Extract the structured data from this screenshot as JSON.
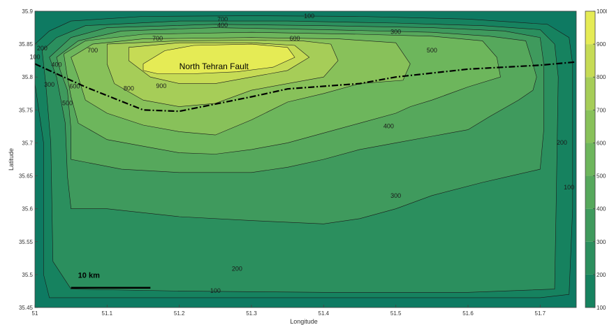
{
  "chart_data": {
    "type": "contour",
    "title": "",
    "xlabel": "Longitude",
    "ylabel": "Latitude",
    "xlim": [
      51.0,
      51.75
    ],
    "ylim": [
      35.45,
      35.9
    ],
    "xticks": [
      51,
      51.1,
      51.2,
      51.3,
      51.4,
      51.5,
      51.6,
      51.7
    ],
    "yticks": [
      35.45,
      35.5,
      35.55,
      35.6,
      35.65,
      35.7,
      35.75,
      35.8,
      35.85,
      35.9
    ],
    "xtick_labels": [
      "51",
      "51.1",
      "51.2",
      "51.3",
      "51.4",
      "51.5",
      "51.6",
      "51.7"
    ],
    "ytick_labels": [
      "35.45",
      "35.5",
      "35.55",
      "35.6",
      "35.65",
      "35.7",
      "35.75",
      "35.8",
      "35.85",
      "35.9"
    ],
    "contour_levels": [
      100,
      200,
      300,
      400,
      500,
      600,
      700,
      800,
      900,
      1000
    ],
    "colorbar_tick_labels": [
      "100",
      "200",
      "300",
      "400",
      "500",
      "600",
      "700",
      "800",
      "900",
      "1000"
    ],
    "colors": {
      "level_0": "#0e7a62",
      "level_100": "#16825f",
      "level_200": "#2b8f5e",
      "level_300": "#3f9a5d",
      "level_400": "#56a85c",
      "level_500": "#6db65c",
      "level_600": "#88c15a",
      "level_700": "#a6cd58",
      "level_800": "#c6db55",
      "level_900": "#e5eb55",
      "level_1000": "#ffff55",
      "fault_line": "#000000",
      "contour_line": "#1a1a1a"
    },
    "contours": [
      {
        "level": 100,
        "points": [
          [
            51.0,
            35.85
          ],
          [
            51.02,
            35.87
          ],
          [
            51.05,
            35.885
          ],
          [
            51.15,
            35.892
          ],
          [
            51.3,
            35.893
          ],
          [
            51.45,
            35.892
          ],
          [
            51.6,
            35.888
          ],
          [
            51.71,
            35.88
          ],
          [
            51.74,
            35.86
          ],
          [
            51.745,
            35.82
          ],
          [
            51.745,
            35.6
          ],
          [
            51.74,
            35.47
          ],
          [
            51.7,
            35.465
          ],
          [
            51.4,
            35.465
          ],
          [
            51.1,
            35.465
          ],
          [
            51.02,
            35.465
          ],
          [
            51.012,
            35.5
          ],
          [
            51.012,
            35.7
          ],
          [
            51.0,
            35.79
          ]
        ]
      },
      {
        "level": 200,
        "points": [
          [
            51.01,
            35.84
          ],
          [
            51.03,
            35.86
          ],
          [
            51.07,
            35.878
          ],
          [
            51.2,
            35.885
          ],
          [
            51.35,
            35.885
          ],
          [
            51.5,
            35.882
          ],
          [
            51.62,
            35.878
          ],
          [
            51.7,
            35.872
          ],
          [
            51.72,
            35.85
          ],
          [
            51.725,
            35.8
          ],
          [
            51.722,
            35.6
          ],
          [
            51.72,
            35.478
          ],
          [
            51.6,
            35.473
          ],
          [
            51.4,
            35.473
          ],
          [
            51.2,
            35.475
          ],
          [
            51.05,
            35.478
          ],
          [
            51.025,
            35.52
          ],
          [
            51.022,
            35.7
          ],
          [
            51.015,
            35.79
          ]
        ]
      },
      {
        "level": 300,
        "points": [
          [
            51.02,
            35.83
          ],
          [
            51.05,
            35.86
          ],
          [
            51.1,
            35.875
          ],
          [
            51.25,
            35.88
          ],
          [
            51.4,
            35.878
          ],
          [
            51.55,
            35.875
          ],
          [
            51.65,
            35.87
          ],
          [
            51.7,
            35.86
          ],
          [
            51.705,
            35.82
          ],
          [
            51.705,
            35.72
          ],
          [
            51.7,
            35.66
          ],
          [
            51.62,
            35.64
          ],
          [
            51.55,
            35.62
          ],
          [
            51.5,
            35.6
          ],
          [
            51.45,
            35.585
          ],
          [
            51.4,
            35.577
          ],
          [
            51.3,
            35.582
          ],
          [
            51.2,
            35.588
          ],
          [
            51.1,
            35.6
          ],
          [
            51.05,
            35.6
          ],
          [
            51.045,
            35.65
          ],
          [
            51.042,
            35.73
          ],
          [
            51.03,
            35.8
          ]
        ]
      },
      {
        "level": 400,
        "points": [
          [
            51.03,
            35.83
          ],
          [
            51.06,
            35.855
          ],
          [
            51.12,
            35.87
          ],
          [
            51.25,
            35.875
          ],
          [
            51.4,
            35.872
          ],
          [
            51.55,
            35.868
          ],
          [
            51.63,
            35.862
          ],
          [
            51.68,
            35.855
          ],
          [
            51.69,
            35.82
          ],
          [
            51.695,
            35.8
          ],
          [
            51.69,
            35.78
          ],
          [
            51.67,
            35.765
          ],
          [
            51.63,
            35.74
          ],
          [
            51.6,
            35.72
          ],
          [
            51.55,
            35.71
          ],
          [
            51.5,
            35.7
          ],
          [
            51.45,
            35.69
          ],
          [
            51.4,
            35.675
          ],
          [
            51.35,
            35.663
          ],
          [
            51.3,
            35.655
          ],
          [
            51.2,
            35.655
          ],
          [
            51.12,
            35.66
          ],
          [
            51.05,
            35.675
          ],
          [
            51.05,
            35.72
          ],
          [
            51.045,
            35.78
          ],
          [
            51.035,
            35.81
          ]
        ]
      },
      {
        "level": 500,
        "points": [
          [
            51.04,
            35.835
          ],
          [
            51.07,
            35.855
          ],
          [
            51.15,
            35.865
          ],
          [
            51.3,
            35.868
          ],
          [
            51.45,
            35.865
          ],
          [
            51.55,
            35.862
          ],
          [
            51.62,
            35.855
          ],
          [
            51.64,
            35.83
          ],
          [
            51.645,
            35.8
          ],
          [
            51.6,
            35.785
          ],
          [
            51.55,
            35.765
          ],
          [
            51.52,
            35.755
          ],
          [
            51.5,
            35.745
          ],
          [
            51.45,
            35.73
          ],
          [
            51.4,
            35.715
          ],
          [
            51.35,
            35.7
          ],
          [
            51.3,
            35.69
          ],
          [
            51.25,
            35.683
          ],
          [
            51.2,
            35.685
          ],
          [
            51.15,
            35.695
          ],
          [
            51.1,
            35.705
          ],
          [
            51.06,
            35.73
          ],
          [
            51.05,
            35.77
          ],
          [
            51.045,
            35.8
          ]
        ]
      },
      {
        "level": 600,
        "points": [
          [
            51.05,
            35.83
          ],
          [
            51.08,
            35.85
          ],
          [
            51.15,
            35.858
          ],
          [
            51.3,
            35.86
          ],
          [
            51.42,
            35.858
          ],
          [
            51.5,
            35.852
          ],
          [
            51.52,
            35.82
          ],
          [
            51.51,
            35.795
          ],
          [
            51.45,
            35.79
          ],
          [
            51.4,
            35.775
          ],
          [
            51.35,
            35.762
          ],
          [
            51.3,
            35.735
          ],
          [
            51.25,
            35.712
          ],
          [
            51.2,
            35.717
          ],
          [
            51.15,
            35.727
          ],
          [
            51.1,
            35.745
          ],
          [
            51.07,
            35.765
          ],
          [
            51.06,
            35.8
          ]
        ]
      },
      {
        "level": 700,
        "points": [
          [
            51.1,
            35.85
          ],
          [
            51.2,
            35.855
          ],
          [
            51.3,
            35.856
          ],
          [
            51.37,
            35.855
          ],
          [
            51.41,
            35.85
          ],
          [
            51.42,
            35.825
          ],
          [
            51.4,
            35.8
          ],
          [
            51.35,
            35.79
          ],
          [
            51.3,
            35.78
          ],
          [
            51.25,
            35.76
          ],
          [
            51.2,
            35.755
          ],
          [
            51.15,
            35.765
          ],
          [
            51.11,
            35.79
          ],
          [
            51.1,
            35.82
          ]
        ]
      },
      {
        "level": 800,
        "points": [
          [
            51.13,
            35.845
          ],
          [
            51.2,
            35.852
          ],
          [
            51.3,
            35.852
          ],
          [
            51.36,
            35.848
          ],
          [
            51.38,
            35.83
          ],
          [
            51.35,
            35.81
          ],
          [
            51.3,
            35.8
          ],
          [
            51.25,
            35.79
          ],
          [
            51.2,
            35.79
          ],
          [
            51.16,
            35.8
          ],
          [
            51.13,
            35.825
          ]
        ]
      },
      {
        "level": 900,
        "points": [
          [
            51.15,
            35.82
          ],
          [
            51.18,
            35.84
          ],
          [
            51.22,
            35.848
          ],
          [
            51.3,
            35.85
          ],
          [
            51.35,
            35.845
          ],
          [
            51.36,
            35.83
          ],
          [
            51.33,
            35.815
          ],
          [
            51.28,
            35.808
          ],
          [
            51.22,
            35.805
          ],
          [
            51.17,
            35.805
          ],
          [
            51.15,
            35.81
          ]
        ]
      }
    ],
    "contour_labels": [
      {
        "text": "700",
        "x": 51.26,
        "y": 35.887
      },
      {
        "text": "400",
        "x": 51.26,
        "y": 35.878
      },
      {
        "text": "100",
        "x": 51.38,
        "y": 35.892
      },
      {
        "text": "300",
        "x": 51.5,
        "y": 35.868
      },
      {
        "text": "700",
        "x": 51.17,
        "y": 35.858
      },
      {
        "text": "600",
        "x": 51.36,
        "y": 35.858
      },
      {
        "text": "500",
        "x": 51.55,
        "y": 35.84
      },
      {
        "text": "700",
        "x": 51.08,
        "y": 35.84
      },
      {
        "text": "200",
        "x": 51.01,
        "y": 35.843
      },
      {
        "text": "400",
        "x": 51.03,
        "y": 35.818
      },
      {
        "text": "100",
        "x": 51.0,
        "y": 35.83
      },
      {
        "text": "300",
        "x": 51.02,
        "y": 35.788
      },
      {
        "text": "600",
        "x": 51.055,
        "y": 35.785
      },
      {
        "text": "500",
        "x": 51.045,
        "y": 35.76
      },
      {
        "text": "800",
        "x": 51.13,
        "y": 35.782
      },
      {
        "text": "900",
        "x": 51.175,
        "y": 35.786
      },
      {
        "text": "400",
        "x": 51.49,
        "y": 35.725
      },
      {
        "text": "300",
        "x": 51.5,
        "y": 35.619
      },
      {
        "text": "200",
        "x": 51.28,
        "y": 35.508
      },
      {
        "text": "100",
        "x": 51.25,
        "y": 35.475
      },
      {
        "text": "200",
        "x": 51.73,
        "y": 35.7
      },
      {
        "text": "100",
        "x": 51.74,
        "y": 35.632
      }
    ],
    "fault_line": {
      "label": "North Tehran Fault",
      "label_x": 51.2,
      "label_y": 35.812,
      "points": [
        [
          51.0,
          35.82
        ],
        [
          51.07,
          35.785
        ],
        [
          51.15,
          35.75
        ],
        [
          51.2,
          35.748
        ],
        [
          51.3,
          35.77
        ],
        [
          51.35,
          35.782
        ],
        [
          51.45,
          35.79
        ],
        [
          51.5,
          35.8
        ],
        [
          51.6,
          35.812
        ],
        [
          51.7,
          35.818
        ],
        [
          51.75,
          35.823
        ]
      ]
    },
    "scale_bar": {
      "label": "10 km",
      "x_start": 51.05,
      "x_end": 51.16,
      "y": 35.48
    },
    "grid": false,
    "legend": "colorbar-right"
  }
}
